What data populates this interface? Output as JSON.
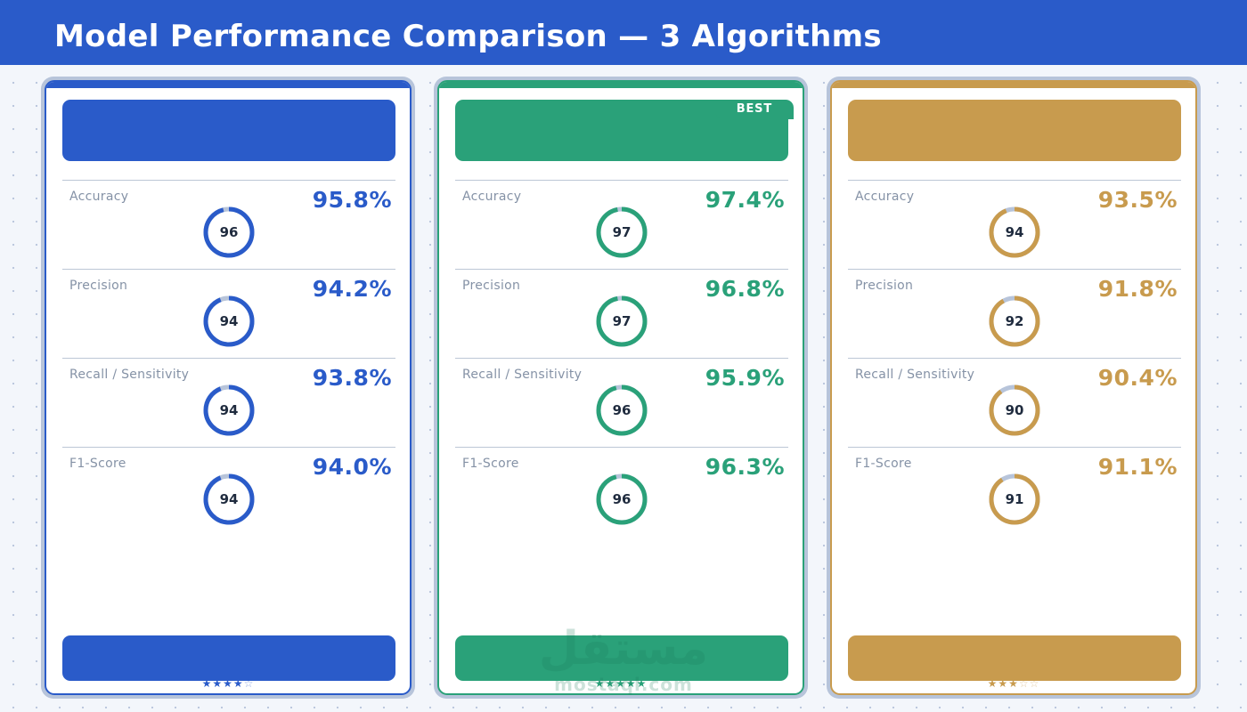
{
  "header": {
    "title": "Model Performance Comparison — 3 Algorithms",
    "background": "#2a5bc9"
  },
  "cards": [
    {
      "accent": "#2a5bc9",
      "badge": "",
      "metrics": [
        {
          "label": "Accuracy",
          "value": "95.8%",
          "ring": 96
        },
        {
          "label": "Precision",
          "value": "94.2%",
          "ring": 94
        },
        {
          "label": "Recall / Sensitivity",
          "value": "93.8%",
          "ring": 94
        },
        {
          "label": "F1-Score",
          "value": "94.0%",
          "ring": 94
        }
      ],
      "stars_filled": 4,
      "stars_total": 5
    },
    {
      "accent": "#2aa179",
      "badge": "BEST",
      "metrics": [
        {
          "label": "Accuracy",
          "value": "97.4%",
          "ring": 97
        },
        {
          "label": "Precision",
          "value": "96.8%",
          "ring": 97
        },
        {
          "label": "Recall / Sensitivity",
          "value": "95.9%",
          "ring": 96
        },
        {
          "label": "F1-Score",
          "value": "96.3%",
          "ring": 96
        }
      ],
      "stars_filled": 5,
      "stars_total": 5
    },
    {
      "accent": "#c89b4e",
      "badge": "",
      "metrics": [
        {
          "label": "Accuracy",
          "value": "93.5%",
          "ring": 94
        },
        {
          "label": "Precision",
          "value": "91.8%",
          "ring": 92
        },
        {
          "label": "Recall / Sensitivity",
          "value": "90.4%",
          "ring": 90
        },
        {
          "label": "F1-Score",
          "value": "91.1%",
          "ring": 91
        }
      ],
      "stars_filled": 3,
      "stars_total": 5
    }
  ],
  "ring_track_color": "#b7c4da",
  "watermark": {
    "logo": "مستقل",
    "text": "mostaql.com"
  }
}
